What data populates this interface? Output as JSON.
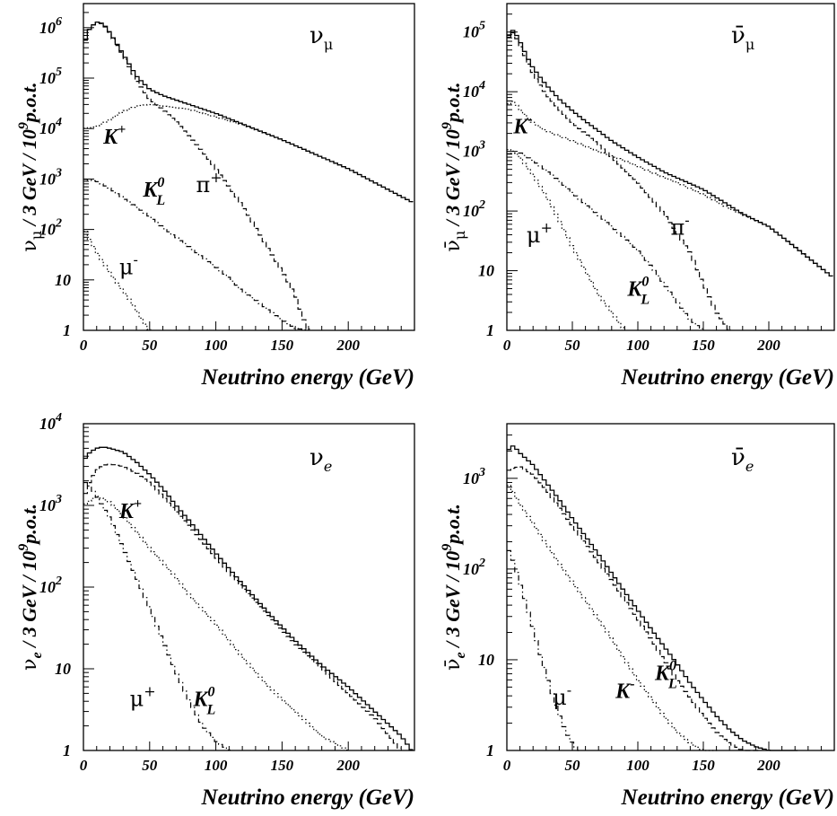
{
  "chart_data": [
    {
      "id": "numu",
      "type": "line",
      "title": "νμ",
      "xlabel": "Neutrino energy (GeV)",
      "ylabel": "νμ / 3 GeV / 10⁹p.o.t.",
      "xlim": [
        0,
        250
      ],
      "ylim": [
        1,
        3000000
      ],
      "yscale": "log",
      "x_ticks": [
        0,
        50,
        100,
        150,
        200
      ],
      "y_ticks": [
        {
          "v": 1,
          "label": "1"
        },
        {
          "v": 10,
          "label": "10"
        },
        {
          "v": 100,
          "label": "10",
          "exp": "2"
        },
        {
          "v": 1000,
          "label": "10",
          "exp": "3"
        },
        {
          "v": 10000,
          "label": "10",
          "exp": "4"
        },
        {
          "v": 100000,
          "label": "10",
          "exp": "5"
        },
        {
          "v": 1000000,
          "label": "10",
          "exp": "6"
        }
      ],
      "series": [
        {
          "style": "solid",
          "x": [
            0,
            5,
            10,
            15,
            20,
            30,
            40,
            50,
            60,
            80,
            100,
            150,
            200,
            248
          ],
          "y": [
            450000,
            1000000,
            1300000,
            1200000,
            800000,
            300000,
            110000,
            60000,
            45000,
            30000,
            20000,
            6000,
            1600,
            350
          ]
        },
        {
          "name": "π+",
          "style": "dashed",
          "x": [
            0,
            5,
            10,
            15,
            20,
            30,
            40,
            50,
            60,
            70,
            80,
            90,
            100,
            110,
            120,
            130,
            140,
            150,
            160,
            165,
            170
          ],
          "y": [
            440000,
            1000000,
            1280000,
            1170000,
            780000,
            280000,
            90000,
            38000,
            24000,
            14000,
            7000,
            3500,
            1600,
            700,
            300,
            110,
            40,
            15,
            5,
            2,
            1
          ]
        },
        {
          "name": "K+",
          "style": "dotted",
          "x": [
            0,
            10,
            20,
            30,
            40,
            50,
            60,
            70,
            80,
            100,
            120,
            150,
            200,
            248
          ],
          "y": [
            10000,
            11000,
            15000,
            22000,
            28000,
            30000,
            28000,
            26000,
            24000,
            17000,
            12000,
            6000,
            1600,
            350
          ]
        },
        {
          "name": "K0L",
          "style": "dashdot",
          "x": [
            0,
            10,
            20,
            30,
            40,
            50,
            60,
            70,
            80,
            90,
            100,
            110,
            120,
            130,
            140,
            150,
            160,
            170
          ],
          "y": [
            1000,
            900,
            650,
            420,
            280,
            180,
            110,
            70,
            45,
            28,
            18,
            11,
            6,
            4,
            2.5,
            1.6,
            1.1,
            1
          ]
        },
        {
          "name": "μ-",
          "style": "dotted",
          "x": [
            0,
            5,
            10,
            15,
            20,
            25,
            30,
            35,
            40,
            45,
            50
          ],
          "y": [
            110,
            60,
            35,
            22,
            14,
            9,
            6,
            4,
            2.5,
            1.5,
            1
          ]
        }
      ],
      "annotations": [
        {
          "text": "K",
          "sup": "+",
          "x": 15,
          "y": 5000
        },
        {
          "text": "K",
          "sup": "0",
          "sub": "L",
          "x": 45,
          "y": 450
        },
        {
          "text": "π",
          "sup": "+",
          "x": 85,
          "y": 550
        },
        {
          "text": "μ",
          "sup": "-",
          "x": 27,
          "y": 13
        }
      ]
    },
    {
      "id": "numubar",
      "type": "line",
      "title": "ν̄μ",
      "xlabel": "Neutrino energy (GeV)",
      "ylabel": "ν̄μ / 3 GeV / 10⁹p.o.t.",
      "xlim": [
        0,
        250
      ],
      "ylim": [
        1,
        300000
      ],
      "yscale": "log",
      "x_ticks": [
        0,
        50,
        100,
        150,
        200
      ],
      "y_ticks": [
        {
          "v": 1,
          "label": "1"
        },
        {
          "v": 10,
          "label": "10"
        },
        {
          "v": 100,
          "label": "10",
          "exp": "2"
        },
        {
          "v": 1000,
          "label": "10",
          "exp": "3"
        },
        {
          "v": 10000,
          "label": "10",
          "exp": "4"
        },
        {
          "v": 100000,
          "label": "10",
          "exp": "5"
        }
      ],
      "series": [
        {
          "style": "solid",
          "x": [
            0,
            5,
            10,
            15,
            20,
            30,
            40,
            50,
            60,
            70,
            80,
            100,
            120,
            150,
            180,
            200,
            220,
            248
          ],
          "y": [
            80000,
            110000,
            70000,
            40000,
            25000,
            13000,
            7500,
            4800,
            3200,
            2200,
            1500,
            800,
            450,
            230,
            90,
            55,
            25,
            8
          ]
        },
        {
          "name": "π-",
          "style": "dashed",
          "x": [
            0,
            5,
            10,
            15,
            20,
            30,
            40,
            50,
            60,
            70,
            80,
            100,
            120,
            140,
            150,
            160,
            170
          ],
          "y": [
            75000,
            100000,
            60000,
            34000,
            20000,
            9000,
            5000,
            3000,
            2000,
            1300,
            800,
            300,
            90,
            20,
            6,
            2,
            1
          ]
        },
        {
          "name": "K-",
          "style": "dotted",
          "x": [
            0,
            5,
            10,
            20,
            30,
            50,
            70,
            90,
            110,
            130,
            150,
            170,
            200,
            248
          ],
          "y": [
            6000,
            7000,
            5000,
            3000,
            2200,
            1500,
            1000,
            700,
            450,
            300,
            190,
            110,
            55,
            8
          ]
        },
        {
          "name": "K0L",
          "style": "dashdot",
          "x": [
            0,
            10,
            20,
            30,
            40,
            50,
            60,
            70,
            80,
            90,
            100,
            110,
            120,
            130,
            140,
            150
          ],
          "y": [
            900,
            950,
            700,
            480,
            320,
            200,
            130,
            85,
            55,
            35,
            22,
            12,
            6,
            3,
            1.5,
            1
          ]
        },
        {
          "name": "μ+",
          "style": "dotted",
          "x": [
            0,
            5,
            10,
            20,
            30,
            40,
            50,
            60,
            70,
            80,
            90
          ],
          "y": [
            1100,
            1000,
            800,
            400,
            180,
            70,
            25,
            10,
            4,
            2,
            1
          ]
        }
      ],
      "annotations": [
        {
          "text": "K",
          "sup": "-",
          "x": 5,
          "y": 2000
        },
        {
          "text": "μ",
          "sup": "+",
          "x": 15,
          "y": 30
        },
        {
          "text": "π",
          "sup": "-",
          "x": 125,
          "y": 40
        },
        {
          "text": "K",
          "sup": "0",
          "sub": "L",
          "x": 92,
          "y": 3.8
        }
      ]
    },
    {
      "id": "nue",
      "type": "line",
      "title": "νe",
      "xlabel": "Neutrino energy (GeV)",
      "ylabel": "νe / 3 GeV / 10⁹p.o.t.",
      "xlim": [
        0,
        250
      ],
      "ylim": [
        1,
        10000
      ],
      "yscale": "log",
      "x_ticks": [
        0,
        50,
        100,
        150,
        200
      ],
      "y_ticks": [
        {
          "v": 1,
          "label": "1"
        },
        {
          "v": 10,
          "label": "10"
        },
        {
          "v": 100,
          "label": "10",
          "exp": "2"
        },
        {
          "v": 1000,
          "label": "10",
          "exp": "3"
        },
        {
          "v": 10000,
          "label": "10",
          "exp": "4"
        }
      ],
      "series": [
        {
          "style": "solid",
          "x": [
            0,
            5,
            10,
            15,
            20,
            30,
            40,
            50,
            60,
            70,
            80,
            100,
            120,
            140,
            160,
            180,
            200,
            220,
            240,
            248
          ],
          "y": [
            3500,
            4500,
            5000,
            5200,
            5000,
            4500,
            3400,
            2400,
            1600,
            1000,
            650,
            260,
            110,
            48,
            22,
            11,
            6,
            3,
            1.5,
            1
          ]
        },
        {
          "name": "K+",
          "style": "dashed",
          "x": [
            0,
            5,
            10,
            15,
            20,
            30,
            40,
            50,
            60,
            70,
            80,
            100,
            120,
            140,
            160,
            180,
            200,
            220,
            240
          ],
          "y": [
            1200,
            2000,
            2700,
            3100,
            3200,
            3000,
            2500,
            1900,
            1300,
            850,
            560,
            230,
            100,
            44,
            20,
            10,
            5,
            2.5,
            1
          ]
        },
        {
          "name": "K0L",
          "style": "dotted",
          "x": [
            0,
            10,
            20,
            30,
            40,
            50,
            60,
            70,
            80,
            100,
            120,
            140,
            160,
            180,
            200
          ],
          "y": [
            1000,
            1300,
            1100,
            750,
            480,
            300,
            200,
            130,
            80,
            35,
            14,
            6,
            3,
            1.5,
            1
          ]
        },
        {
          "name": "μ+",
          "style": "dashdot",
          "x": [
            0,
            5,
            10,
            20,
            30,
            40,
            50,
            60,
            70,
            80,
            90,
            100,
            110
          ],
          "y": [
            2000,
            1700,
            1300,
            700,
            300,
            130,
            55,
            22,
            9,
            4,
            2,
            1.3,
            1
          ]
        }
      ],
      "annotations": [
        {
          "text": "K",
          "sup": "+",
          "x": 27,
          "y": 700
        },
        {
          "text": "μ",
          "sup": "+",
          "x": 35,
          "y": 3.5
        },
        {
          "text": "K",
          "sup": "0",
          "sub": "L",
          "x": 83,
          "y": 3.5
        }
      ]
    },
    {
      "id": "nuebar",
      "type": "line",
      "title": "ν̄e",
      "xlabel": "Neutrino energy (GeV)",
      "ylabel": "ν̄e / 3 GeV / 10⁹p.o.t.",
      "xlim": [
        0,
        250
      ],
      "ylim": [
        1,
        4000
      ],
      "yscale": "log",
      "x_ticks": [
        0,
        50,
        100,
        150,
        200
      ],
      "y_ticks": [
        {
          "v": 1,
          "label": "1"
        },
        {
          "v": 10,
          "label": "10"
        },
        {
          "v": 100,
          "label": "10",
          "exp": "2"
        },
        {
          "v": 1000,
          "label": "10",
          "exp": "3"
        }
      ],
      "series": [
        {
          "style": "solid",
          "x": [
            0,
            5,
            10,
            20,
            30,
            40,
            50,
            60,
            70,
            80,
            90,
            100,
            110,
            120,
            130,
            140,
            150,
            160,
            170,
            180,
            190,
            200,
            210,
            220
          ],
          "y": [
            2000,
            2300,
            1900,
            1400,
            900,
            580,
            360,
            230,
            145,
            90,
            56,
            35,
            22,
            14,
            9,
            5.5,
            3.6,
            2.4,
            1.7,
            1.3,
            1.1,
            1,
            1,
            1
          ]
        },
        {
          "name": "K0L",
          "style": "dashed",
          "x": [
            0,
            5,
            10,
            20,
            30,
            40,
            50,
            60,
            70,
            80,
            90,
            100,
            110,
            120,
            130,
            140,
            150,
            160,
            170,
            180,
            190
          ],
          "y": [
            1200,
            1300,
            1350,
            1100,
            750,
            480,
            300,
            190,
            120,
            75,
            46,
            28,
            17,
            10,
            6,
            3.8,
            2.4,
            1.6,
            1.2,
            1,
            1
          ]
        },
        {
          "name": "K-",
          "style": "dotted",
          "x": [
            0,
            5,
            10,
            20,
            30,
            40,
            50,
            60,
            70,
            80,
            90,
            100,
            110,
            120,
            130,
            140,
            150,
            160
          ],
          "y": [
            900,
            700,
            520,
            320,
            190,
            115,
            72,
            45,
            28,
            17,
            10,
            6,
            3.8,
            2.4,
            1.6,
            1.2,
            1,
            1
          ]
        },
        {
          "name": "μ-",
          "style": "dashdot",
          "x": [
            0,
            5,
            10,
            15,
            20,
            25,
            30,
            35,
            40,
            45,
            50,
            55
          ],
          "y": [
            180,
            120,
            70,
            40,
            22,
            12,
            7,
            4,
            2.5,
            1.6,
            1.2,
            1
          ]
        }
      ],
      "annotations": [
        {
          "text": "μ",
          "sup": "-",
          "x": 35,
          "y": 3.2
        },
        {
          "text": "K",
          "sup": "-",
          "x": 83,
          "y": 3.8
        },
        {
          "text": "K",
          "sup": "0",
          "sub": "L",
          "x": 113,
          "y": 6
        }
      ]
    }
  ]
}
